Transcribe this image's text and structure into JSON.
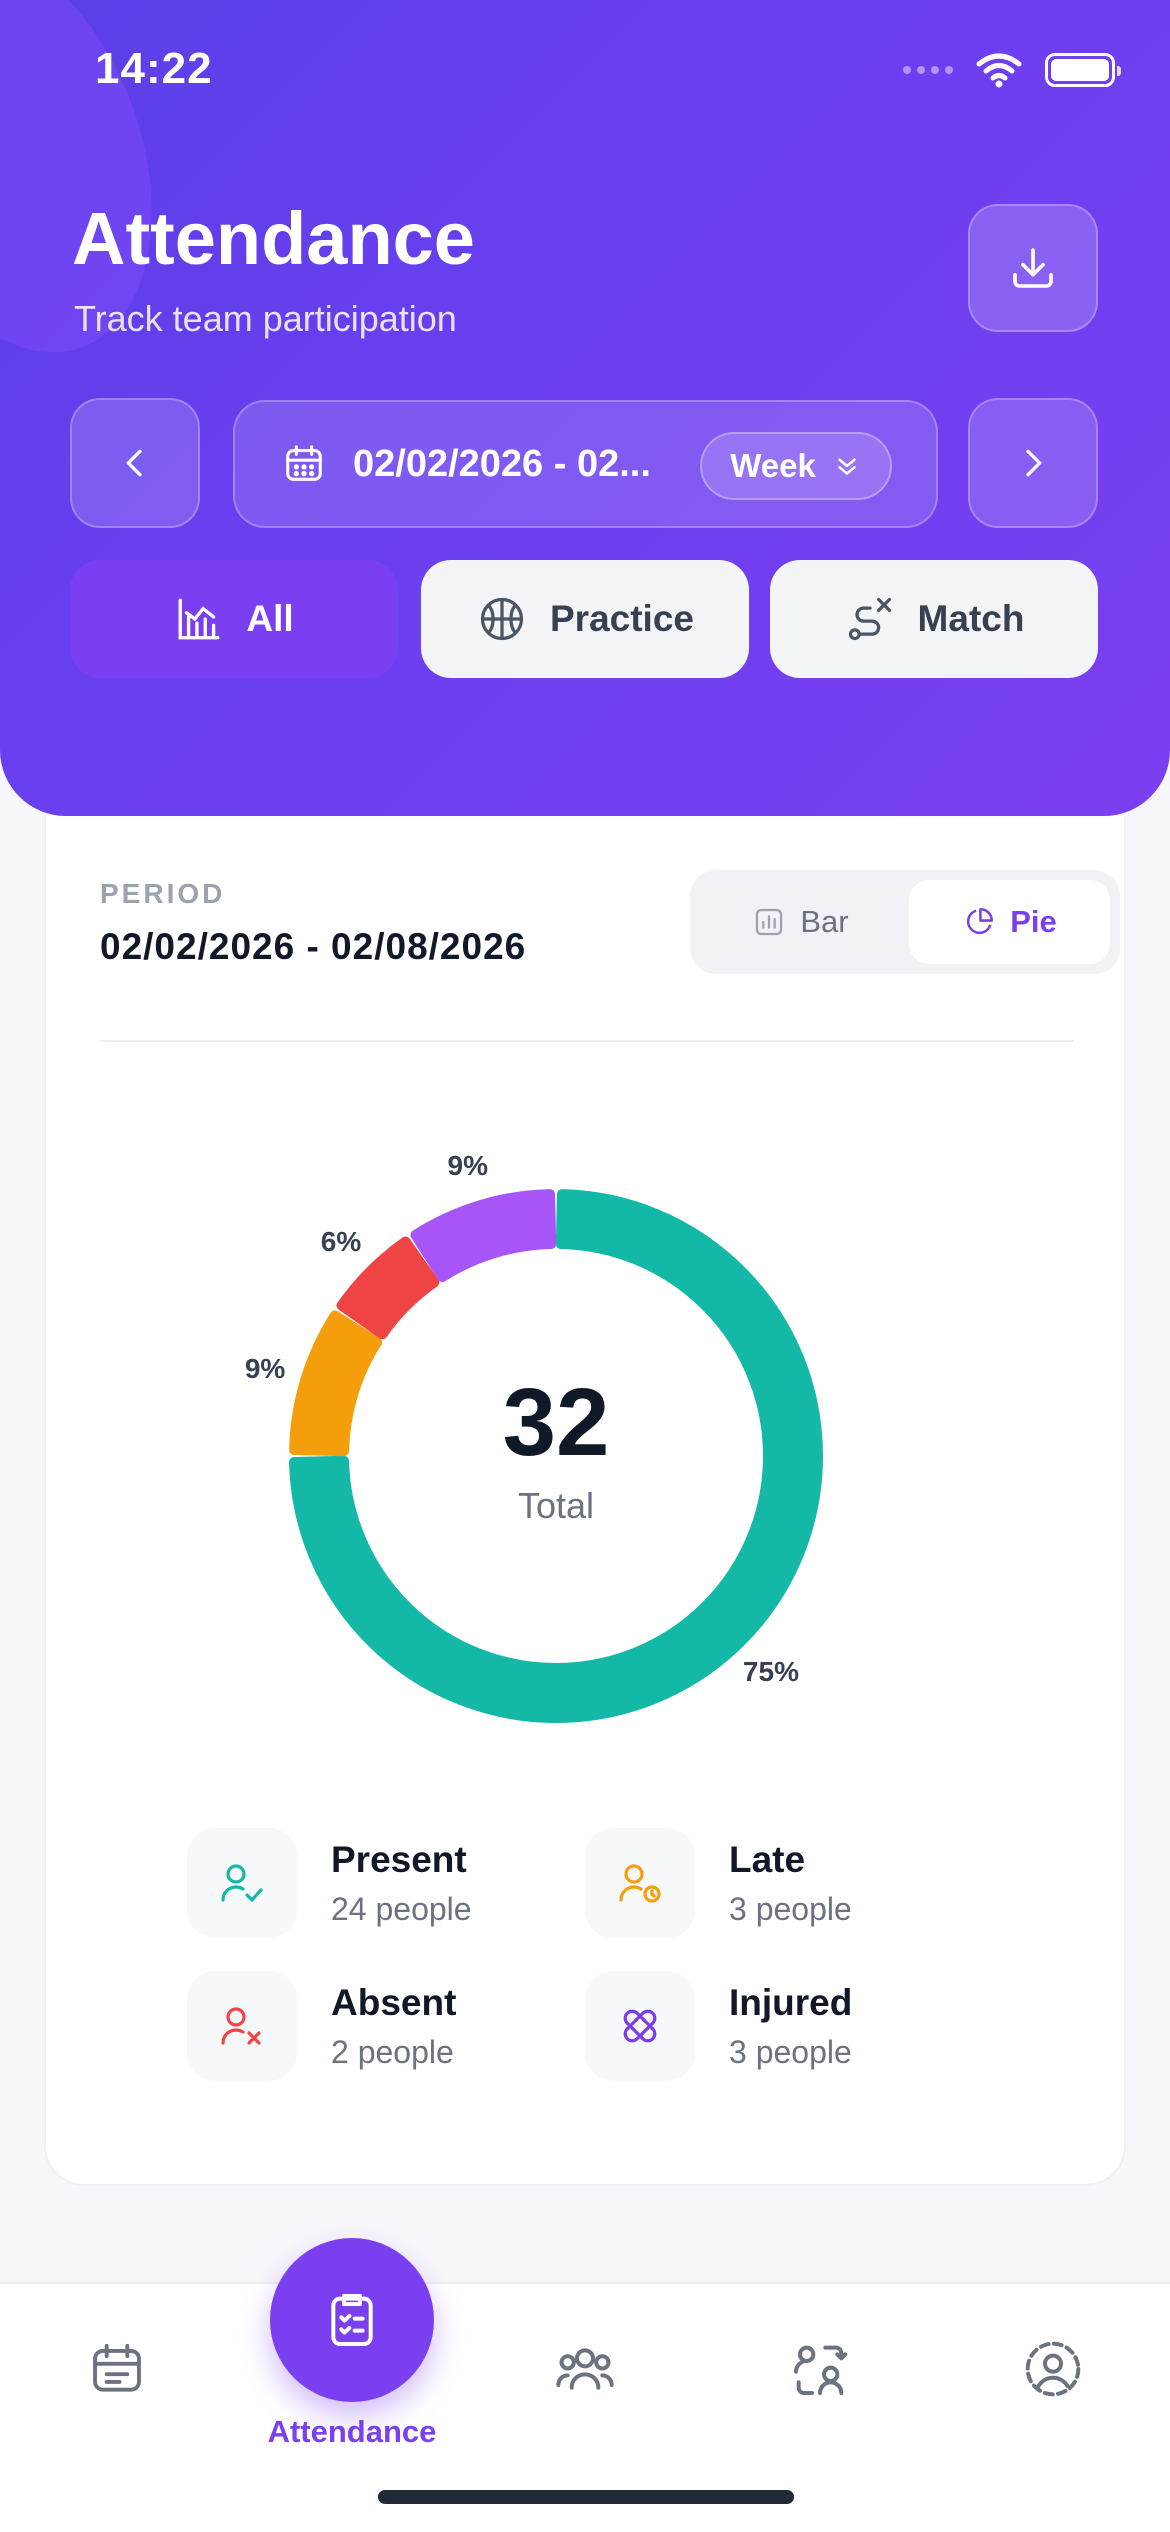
{
  "status_bar": {
    "time": "14:22"
  },
  "header": {
    "title": "Attendance",
    "subtitle": "Track team participation",
    "date_range": "02/02/2026 - 02...",
    "period_mode": "Week",
    "filters": [
      {
        "label": "All",
        "icon": "bar-chart-icon",
        "active": true
      },
      {
        "label": "Practice",
        "icon": "basketball-icon",
        "active": false
      },
      {
        "label": "Match",
        "icon": "route-icon",
        "active": false
      }
    ]
  },
  "card": {
    "period_label": "PERIOD",
    "period_value": "02/02/2026 - 02/08/2026",
    "view_toggle": [
      {
        "label": "Bar",
        "icon": "bar-chart-icon",
        "active": false
      },
      {
        "label": "Pie",
        "icon": "pie-chart-icon",
        "active": true
      }
    ],
    "total_value": "32",
    "total_label": "Total",
    "legend": [
      {
        "name": "Present",
        "count": "24 people",
        "color": "#14b8a6",
        "icon": "user-check-icon"
      },
      {
        "name": "Late",
        "count": "3 people",
        "color": "#f59e0b",
        "icon": "user-clock-icon"
      },
      {
        "name": "Absent",
        "count": "2 people",
        "color": "#ef4444",
        "icon": "user-x-icon"
      },
      {
        "name": "Injured",
        "count": "3 people",
        "color": "#7c3aed",
        "icon": "bandage-icon"
      }
    ]
  },
  "chart_data": {
    "type": "pie",
    "categories": [
      "Present",
      "Late",
      "Absent",
      "Injured"
    ],
    "values": [
      24,
      3,
      2,
      3
    ],
    "labels": [
      "75%",
      "9%",
      "6%",
      "9%"
    ],
    "colors": [
      "#14b8a6",
      "#f59e0b",
      "#ef4444",
      "#a855f7"
    ],
    "total": 32
  },
  "bottom_nav": {
    "active_label": "Attendance",
    "items": [
      "calendar-icon",
      "attendance-icon",
      "team-icon",
      "swap-users-icon",
      "profile-icon"
    ]
  }
}
